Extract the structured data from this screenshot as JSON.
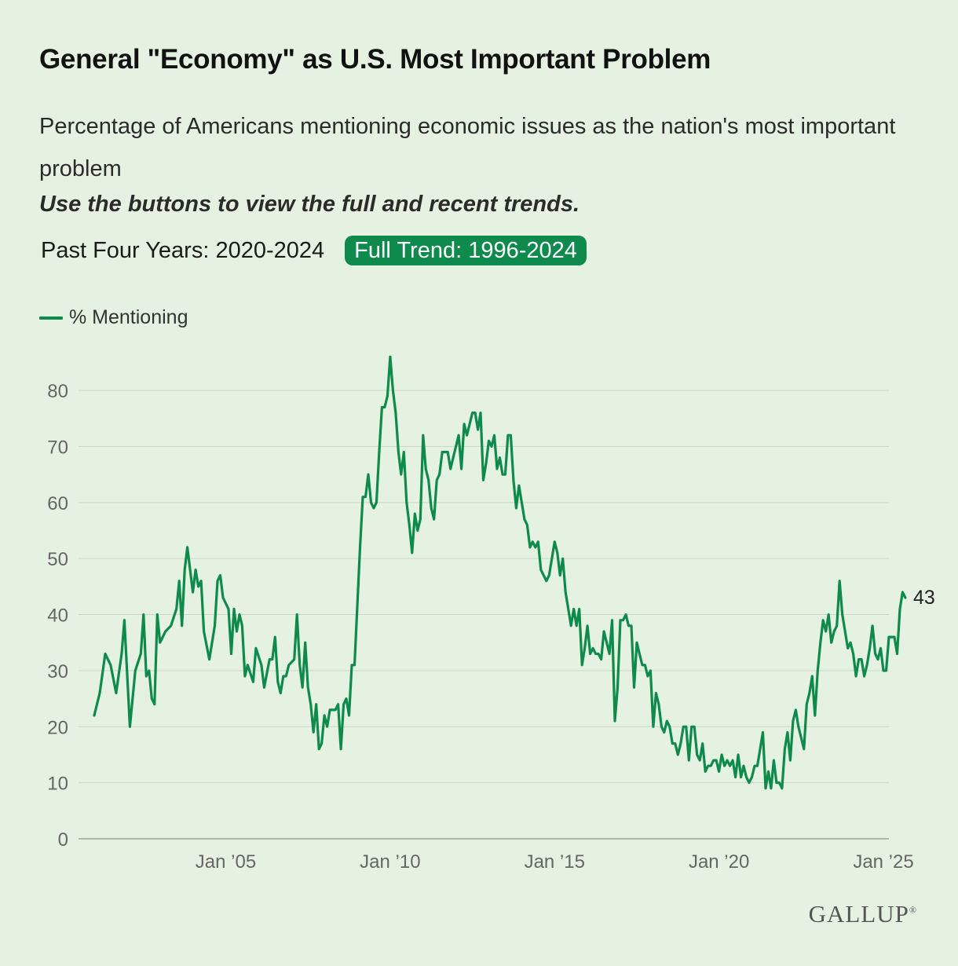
{
  "header": {
    "title": "General \"Economy\" as U.S. Most Important Problem",
    "subtitle": "Percentage of Americans mentioning economic issues as the nation's most important problem",
    "instruction": "Use the buttons to view the full and recent trends."
  },
  "buttons": [
    {
      "label": "Past Four Years: 2020-2024",
      "active": false
    },
    {
      "label": "Full Trend: 1996-2024",
      "active": true
    }
  ],
  "colors": {
    "line": "#0f8a4d",
    "grid": "#c9d9c4",
    "axis_text": "#666666",
    "background": "#e5f2e1"
  },
  "footer": {
    "logo": "GALLUP"
  },
  "chart_data": {
    "type": "line",
    "legend": {
      "placement": "top-left"
    },
    "ylim": [
      0,
      88
    ],
    "yticks": [
      0,
      10,
      20,
      30,
      40,
      50,
      60,
      70,
      80
    ],
    "xlim": [
      "2001-01",
      "2025-03"
    ],
    "xticks": [
      {
        "value": "2005-01",
        "label": "Jan ’05"
      },
      {
        "value": "2010-01",
        "label": "Jan ’10"
      },
      {
        "value": "2015-01",
        "label": "Jan ’15"
      },
      {
        "value": "2020-01",
        "label": "Jan ’20"
      },
      {
        "value": "2025-01",
        "label": "Jan ’25"
      }
    ],
    "grid": true,
    "end_label": "43",
    "series": [
      {
        "name": "% Mentioning",
        "points": [
          [
            "2001-01",
            22
          ],
          [
            "2001-03",
            26
          ],
          [
            "2001-05",
            33
          ],
          [
            "2001-07",
            31
          ],
          [
            "2001-09",
            26
          ],
          [
            "2001-11",
            33
          ],
          [
            "2001-12",
            39
          ],
          [
            "2002-02",
            20
          ],
          [
            "2002-04",
            30
          ],
          [
            "2002-06",
            33
          ],
          [
            "2002-07",
            40
          ],
          [
            "2002-08",
            29
          ],
          [
            "2002-09",
            30
          ],
          [
            "2002-10",
            25
          ],
          [
            "2002-11",
            24
          ],
          [
            "2002-12",
            40
          ],
          [
            "2003-01",
            35
          ],
          [
            "2003-03",
            37
          ],
          [
            "2003-05",
            38
          ],
          [
            "2003-07",
            41
          ],
          [
            "2003-08",
            46
          ],
          [
            "2003-09",
            38
          ],
          [
            "2003-10",
            48
          ],
          [
            "2003-11",
            52
          ],
          [
            "2004-01",
            44
          ],
          [
            "2004-02",
            48
          ],
          [
            "2004-03",
            45
          ],
          [
            "2004-04",
            46
          ],
          [
            "2004-05",
            37
          ],
          [
            "2004-07",
            32
          ],
          [
            "2004-09",
            38
          ],
          [
            "2004-10",
            46
          ],
          [
            "2004-11",
            47
          ],
          [
            "2004-12",
            43
          ],
          [
            "2005-02",
            41
          ],
          [
            "2005-03",
            33
          ],
          [
            "2005-04",
            41
          ],
          [
            "2005-05",
            37
          ],
          [
            "2005-06",
            40
          ],
          [
            "2005-07",
            38
          ],
          [
            "2005-08",
            29
          ],
          [
            "2005-09",
            31
          ],
          [
            "2005-11",
            28
          ],
          [
            "2005-12",
            34
          ],
          [
            "2006-02",
            31
          ],
          [
            "2006-03",
            27
          ],
          [
            "2006-05",
            32
          ],
          [
            "2006-06",
            32
          ],
          [
            "2006-07",
            36
          ],
          [
            "2006-08",
            28
          ],
          [
            "2006-09",
            26
          ],
          [
            "2006-10",
            29
          ],
          [
            "2006-11",
            29
          ],
          [
            "2006-12",
            31
          ],
          [
            "2007-02",
            32
          ],
          [
            "2007-03",
            40
          ],
          [
            "2007-04",
            31
          ],
          [
            "2007-05",
            27
          ],
          [
            "2007-06",
            35
          ],
          [
            "2007-07",
            27
          ],
          [
            "2007-08",
            24
          ],
          [
            "2007-09",
            19
          ],
          [
            "2007-10",
            24
          ],
          [
            "2007-11",
            16
          ],
          [
            "2007-12",
            17
          ],
          [
            "2008-01",
            22
          ],
          [
            "2008-02",
            20
          ],
          [
            "2008-03",
            23
          ],
          [
            "2008-05",
            23
          ],
          [
            "2008-06",
            24
          ],
          [
            "2008-07",
            16
          ],
          [
            "2008-08",
            24
          ],
          [
            "2008-09",
            25
          ],
          [
            "2008-10",
            22
          ],
          [
            "2008-11",
            31
          ],
          [
            "2008-12",
            31
          ],
          [
            "2009-02",
            52
          ],
          [
            "2009-03",
            61
          ],
          [
            "2009-04",
            61
          ],
          [
            "2009-05",
            65
          ],
          [
            "2009-06",
            60
          ],
          [
            "2009-07",
            59
          ],
          [
            "2009-08",
            60
          ],
          [
            "2009-09",
            69
          ],
          [
            "2009-10",
            77
          ],
          [
            "2009-11",
            77
          ],
          [
            "2009-12",
            79
          ],
          [
            "2010-01",
            86
          ],
          [
            "2010-02",
            80
          ],
          [
            "2010-03",
            76
          ],
          [
            "2010-04",
            69
          ],
          [
            "2010-05",
            65
          ],
          [
            "2010-06",
            69
          ],
          [
            "2010-07",
            60
          ],
          [
            "2010-08",
            56
          ],
          [
            "2010-09",
            51
          ],
          [
            "2010-10",
            58
          ],
          [
            "2010-11",
            55
          ],
          [
            "2010-12",
            57
          ],
          [
            "2011-01",
            72
          ],
          [
            "2011-02",
            66
          ],
          [
            "2011-03",
            64
          ],
          [
            "2011-04",
            59
          ],
          [
            "2011-05",
            57
          ],
          [
            "2011-06",
            64
          ],
          [
            "2011-07",
            65
          ],
          [
            "2011-08",
            69
          ],
          [
            "2011-10",
            69
          ],
          [
            "2011-11",
            66
          ],
          [
            "2011-12",
            68
          ],
          [
            "2012-01",
            70
          ],
          [
            "2012-02",
            72
          ],
          [
            "2012-03",
            66
          ],
          [
            "2012-04",
            74
          ],
          [
            "2012-05",
            72
          ],
          [
            "2012-07",
            76
          ],
          [
            "2012-08",
            76
          ],
          [
            "2012-09",
            73
          ],
          [
            "2012-10",
            76
          ],
          [
            "2012-11",
            64
          ],
          [
            "2012-12",
            67
          ],
          [
            "2013-01",
            71
          ],
          [
            "2013-02",
            70
          ],
          [
            "2013-03",
            72
          ],
          [
            "2013-04",
            66
          ],
          [
            "2013-05",
            68
          ],
          [
            "2013-06",
            65
          ],
          [
            "2013-07",
            65
          ],
          [
            "2013-08",
            72
          ],
          [
            "2013-09",
            72
          ],
          [
            "2013-10",
            64
          ],
          [
            "2013-11",
            59
          ],
          [
            "2013-12",
            63
          ],
          [
            "2014-01",
            60
          ],
          [
            "2014-02",
            57
          ],
          [
            "2014-03",
            56
          ],
          [
            "2014-04",
            52
          ],
          [
            "2014-05",
            53
          ],
          [
            "2014-06",
            52
          ],
          [
            "2014-07",
            53
          ],
          [
            "2014-08",
            48
          ],
          [
            "2014-09",
            47
          ],
          [
            "2014-10",
            46
          ],
          [
            "2014-11",
            47
          ],
          [
            "2014-12",
            50
          ],
          [
            "2015-01",
            53
          ],
          [
            "2015-02",
            51
          ],
          [
            "2015-03",
            47
          ],
          [
            "2015-04",
            50
          ],
          [
            "2015-05",
            44
          ],
          [
            "2015-06",
            41
          ],
          [
            "2015-07",
            38
          ],
          [
            "2015-08",
            41
          ],
          [
            "2015-09",
            38
          ],
          [
            "2015-10",
            41
          ],
          [
            "2015-11",
            31
          ],
          [
            "2015-12",
            34
          ],
          [
            "2016-01",
            38
          ],
          [
            "2016-02",
            33
          ],
          [
            "2016-03",
            34
          ],
          [
            "2016-04",
            33
          ],
          [
            "2016-05",
            33
          ],
          [
            "2016-06",
            32
          ],
          [
            "2016-07",
            37
          ],
          [
            "2016-08",
            35
          ],
          [
            "2016-09",
            33
          ],
          [
            "2016-10",
            39
          ],
          [
            "2016-11",
            21
          ],
          [
            "2016-12",
            27
          ],
          [
            "2017-01",
            39
          ],
          [
            "2017-02",
            39
          ],
          [
            "2017-03",
            40
          ],
          [
            "2017-04",
            38
          ],
          [
            "2017-05",
            38
          ],
          [
            "2017-06",
            27
          ],
          [
            "2017-07",
            35
          ],
          [
            "2017-08",
            33
          ],
          [
            "2017-09",
            31
          ],
          [
            "2017-10",
            31
          ],
          [
            "2017-11",
            29
          ],
          [
            "2017-12",
            30
          ],
          [
            "2018-01",
            20
          ],
          [
            "2018-02",
            26
          ],
          [
            "2018-03",
            24
          ],
          [
            "2018-04",
            20
          ],
          [
            "2018-05",
            19
          ],
          [
            "2018-06",
            21
          ],
          [
            "2018-07",
            20
          ],
          [
            "2018-08",
            17
          ],
          [
            "2018-09",
            17
          ],
          [
            "2018-10",
            15
          ],
          [
            "2018-11",
            17
          ],
          [
            "2018-12",
            20
          ],
          [
            "2019-01",
            20
          ],
          [
            "2019-02",
            14
          ],
          [
            "2019-03",
            20
          ],
          [
            "2019-04",
            20
          ],
          [
            "2019-05",
            15
          ],
          [
            "2019-06",
            14
          ],
          [
            "2019-07",
            17
          ],
          [
            "2019-08",
            12
          ],
          [
            "2019-09",
            13
          ],
          [
            "2019-10",
            13
          ],
          [
            "2019-11",
            14
          ],
          [
            "2019-12",
            14
          ],
          [
            "2020-01",
            12
          ],
          [
            "2020-02",
            15
          ],
          [
            "2020-03",
            13
          ],
          [
            "2020-04",
            14
          ],
          [
            "2020-05",
            13
          ],
          [
            "2020-06",
            14
          ],
          [
            "2020-07",
            11
          ],
          [
            "2020-08",
            15
          ],
          [
            "2020-09",
            11
          ],
          [
            "2020-10",
            13
          ],
          [
            "2020-11",
            11
          ],
          [
            "2020-12",
            10
          ],
          [
            "2021-01",
            11
          ],
          [
            "2021-02",
            13
          ],
          [
            "2021-03",
            13
          ],
          [
            "2021-04",
            16
          ],
          [
            "2021-05",
            19
          ],
          [
            "2021-06",
            9
          ],
          [
            "2021-07",
            12
          ],
          [
            "2021-08",
            9
          ],
          [
            "2021-09",
            14
          ],
          [
            "2021-10",
            10
          ],
          [
            "2021-11",
            10
          ],
          [
            "2021-12",
            9
          ],
          [
            "2022-01",
            16
          ],
          [
            "2022-02",
            19
          ],
          [
            "2022-03",
            14
          ],
          [
            "2022-04",
            21
          ],
          [
            "2022-05",
            23
          ],
          [
            "2022-06",
            20
          ],
          [
            "2022-07",
            18
          ],
          [
            "2022-08",
            16
          ],
          [
            "2022-09",
            24
          ],
          [
            "2022-10",
            26
          ],
          [
            "2022-11",
            29
          ],
          [
            "2022-12",
            22
          ],
          [
            "2023-01",
            30
          ],
          [
            "2023-02",
            35
          ],
          [
            "2023-03",
            39
          ],
          [
            "2023-04",
            37
          ],
          [
            "2023-05",
            40
          ],
          [
            "2023-06",
            35
          ],
          [
            "2023-07",
            37
          ],
          [
            "2023-08",
            38
          ],
          [
            "2023-09",
            46
          ],
          [
            "2023-10",
            40
          ],
          [
            "2023-11",
            37
          ],
          [
            "2023-12",
            34
          ],
          [
            "2024-01",
            35
          ],
          [
            "2024-02",
            33
          ],
          [
            "2024-03",
            29
          ],
          [
            "2024-04",
            32
          ],
          [
            "2024-05",
            32
          ],
          [
            "2024-06",
            29
          ],
          [
            "2024-07",
            31
          ],
          [
            "2024-08",
            34
          ],
          [
            "2024-09",
            38
          ],
          [
            "2024-10",
            33
          ],
          [
            "2024-11",
            32
          ],
          [
            "2024-12",
            34
          ],
          [
            "2025-01",
            30
          ],
          [
            "2025-02",
            30
          ],
          [
            "2025-03",
            36
          ],
          [
            "2025-04",
            36
          ],
          [
            "2025-05",
            36
          ],
          [
            "2025-06",
            33
          ],
          [
            "2025-07",
            41
          ],
          [
            "2025-08",
            44
          ],
          [
            "2025-09",
            43
          ]
        ]
      }
    ]
  }
}
